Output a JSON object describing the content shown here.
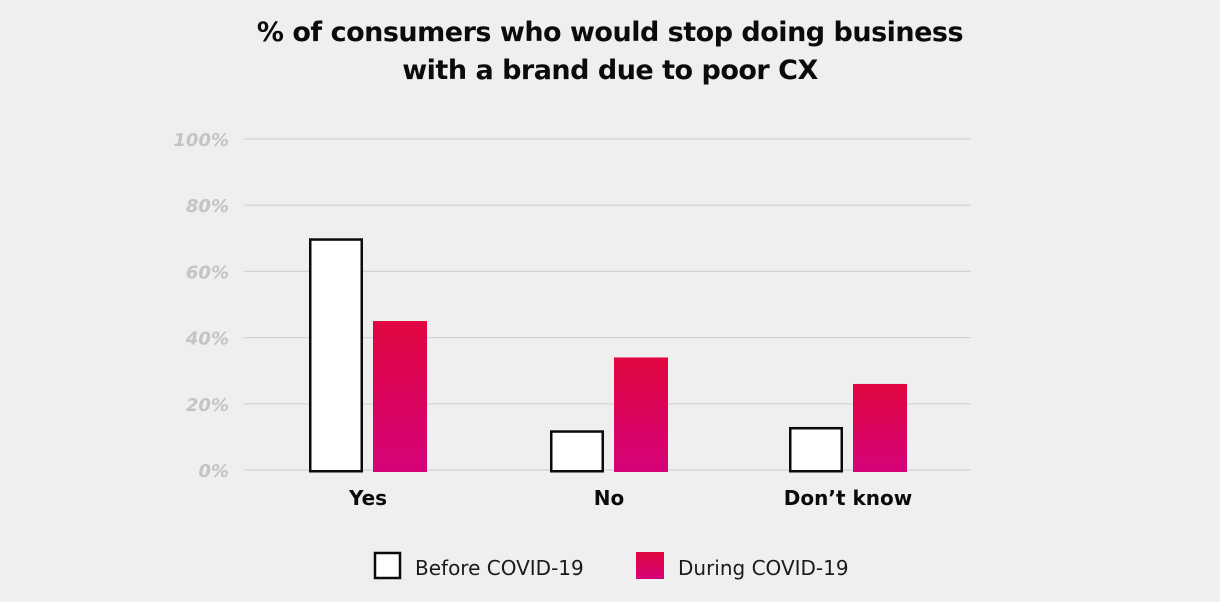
{
  "chart_data": {
    "type": "bar",
    "title": [
      "% of consumers who would stop doing business",
      "with a brand due to poor CX"
    ],
    "categories": [
      "Yes",
      "No",
      "Don’t know"
    ],
    "series": [
      {
        "name": "Before COVID-19",
        "values": [
          70,
          12,
          13
        ],
        "fill": "#ffffff",
        "stroke": "#0b0b0b"
      },
      {
        "name": "During COVID-19",
        "values": [
          45,
          34,
          26
        ],
        "gradient": [
          "#e0063f",
          "#d5037a"
        ]
      }
    ],
    "ylim": [
      0,
      100
    ],
    "yticks": [
      0,
      20,
      40,
      60,
      80,
      100
    ],
    "ytick_labels": [
      "0%",
      "20%",
      "40%",
      "60%",
      "80%",
      "100%"
    ],
    "grid": true,
    "legend": "bottom",
    "colors": {
      "background": "#efefef",
      "grid": "#d2d2d2",
      "tick_label": "#c4c4c4"
    }
  }
}
